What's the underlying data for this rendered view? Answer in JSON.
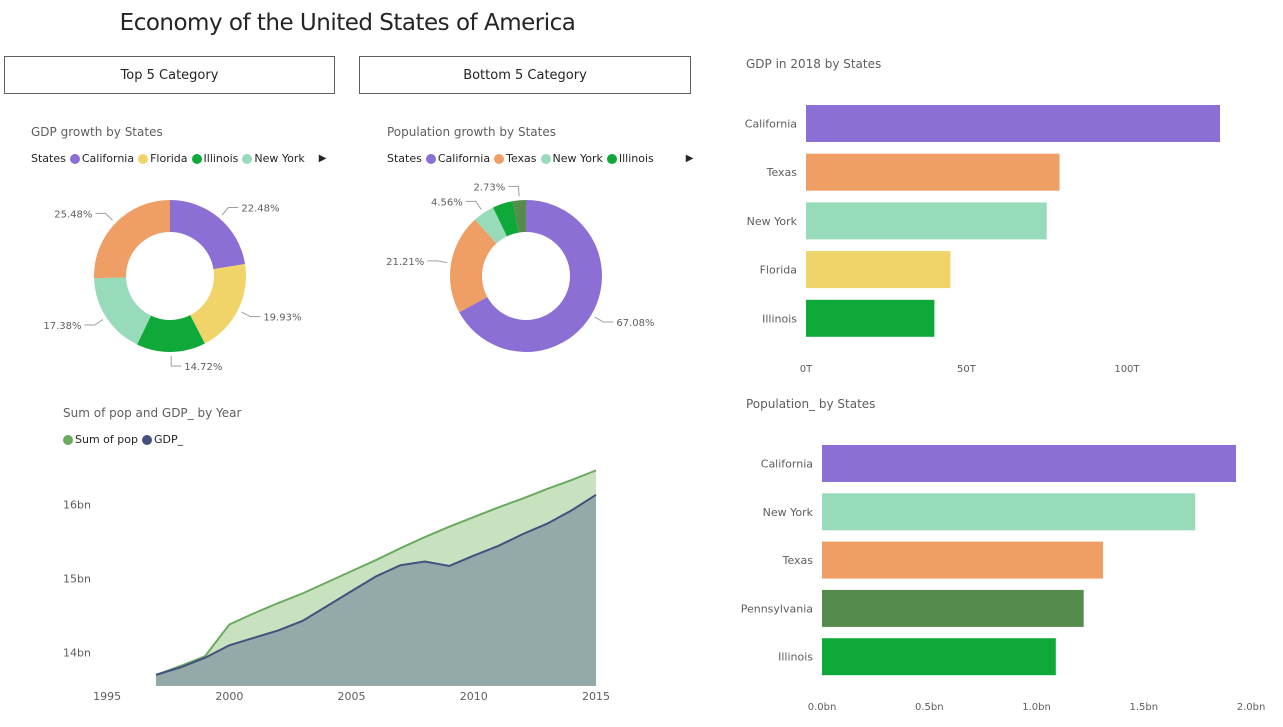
{
  "title": "Economy of the United States of America",
  "buttons": {
    "top5": "Top 5 Category",
    "bottom5": "Bottom 5 Category"
  },
  "gdp_growth": {
    "title": "GDP growth by States",
    "legend_title": "States",
    "legend": [
      "California",
      "Florida",
      "Illinois",
      "New York"
    ],
    "more_icon": "triangle-right-icon"
  },
  "pop_growth": {
    "title": "Population growth by States",
    "legend_title": "States",
    "legend": [
      "California",
      "Texas",
      "New York",
      "Illinois"
    ],
    "more_icon": "triangle-right-icon"
  },
  "area_chart": {
    "title": "Sum of pop and GDP_ by Year",
    "legend": [
      "Sum of pop",
      "GDP_"
    ]
  },
  "gdp2018": {
    "title": "GDP in 2018 by States"
  },
  "pop_states": {
    "title": "Population_ by States"
  },
  "chart_data": [
    {
      "type": "pie",
      "title": "GDP growth by States",
      "donut": true,
      "categories": [
        "California",
        "Florida",
        "Illinois",
        "New York",
        "Texas"
      ],
      "values": [
        22.48,
        19.93,
        14.72,
        17.38,
        25.48
      ],
      "labels": [
        "22.48%",
        "19.93%",
        "14.72%",
        "17.38%",
        "25.48%"
      ],
      "colors": [
        "#8b6fd4",
        "#f0d46a",
        "#0ea938",
        "#98dbbb",
        "#ef9e65"
      ]
    },
    {
      "type": "pie",
      "title": "Population growth by States",
      "donut": true,
      "categories": [
        "California",
        "Texas",
        "New York",
        "Illinois",
        "Pennsylvania"
      ],
      "values": [
        67.08,
        21.21,
        4.56,
        4.42,
        2.73
      ],
      "labels": [
        "67.08%",
        "21.21%",
        "4.56%",
        "",
        "2.73%"
      ],
      "colors": [
        "#8b6fd4",
        "#ef9e65",
        "#98dbbb",
        "#0ea938",
        "#558b4c"
      ]
    },
    {
      "type": "area",
      "title": "Sum of pop and GDP_ by Year",
      "x": [
        1997,
        1998,
        1999,
        2000,
        2001,
        2002,
        2003,
        2004,
        2005,
        2006,
        2007,
        2008,
        2009,
        2010,
        2011,
        2012,
        2013,
        2014,
        2015
      ],
      "series": [
        {
          "name": "Sum of pop",
          "color": "#6aaa5e",
          "fill": "#c8e2c0",
          "values": [
            13.7,
            13.82,
            13.95,
            14.38,
            14.53,
            14.67,
            14.8,
            14.95,
            15.1,
            15.25,
            15.41,
            15.56,
            15.7,
            15.83,
            15.96,
            16.08,
            16.21,
            16.33,
            16.46
          ]
        },
        {
          "name": "GDP_",
          "color": "#44517f",
          "fill": "#94aaa8",
          "values": [
            13.7,
            13.8,
            13.93,
            14.1,
            14.2,
            14.3,
            14.43,
            14.63,
            14.83,
            15.03,
            15.18,
            15.23,
            15.17,
            15.31,
            15.44,
            15.6,
            15.74,
            15.92,
            16.13
          ]
        }
      ],
      "xticks": [
        "1995",
        "2000",
        "2005",
        "2010",
        "2015"
      ],
      "yticks": [
        "14bn",
        "15bn",
        "16bn"
      ],
      "xlim": [
        1995,
        2015
      ],
      "ylim": [
        13.55,
        16.6
      ]
    },
    {
      "type": "bar",
      "orientation": "horizontal",
      "title": "GDP in 2018 by States",
      "categories": [
        "California",
        "Texas",
        "New York",
        "Florida",
        "Illinois"
      ],
      "values": [
        129,
        79,
        75,
        45,
        40
      ],
      "colors": [
        "#8b6fd4",
        "#ef9e65",
        "#98dbbb",
        "#f0d46a",
        "#0ea938"
      ],
      "xticks": [
        "0T",
        "50T",
        "100T"
      ],
      "xlim": [
        0,
        129
      ]
    },
    {
      "type": "bar",
      "orientation": "horizontal",
      "title": "Population_ by States",
      "categories": [
        "California",
        "New York",
        "Texas",
        "Pennsylvania",
        "Illinois"
      ],
      "values": [
        1.93,
        1.74,
        1.31,
        1.22,
        1.09
      ],
      "colors": [
        "#8b6fd4",
        "#98dbbb",
        "#ef9e65",
        "#558b4c",
        "#0ea938"
      ],
      "xticks": [
        "0.0bn",
        "0.5bn",
        "1.0bn",
        "1.5bn",
        "2.0bn"
      ],
      "xlim": [
        0,
        2.0
      ]
    }
  ]
}
